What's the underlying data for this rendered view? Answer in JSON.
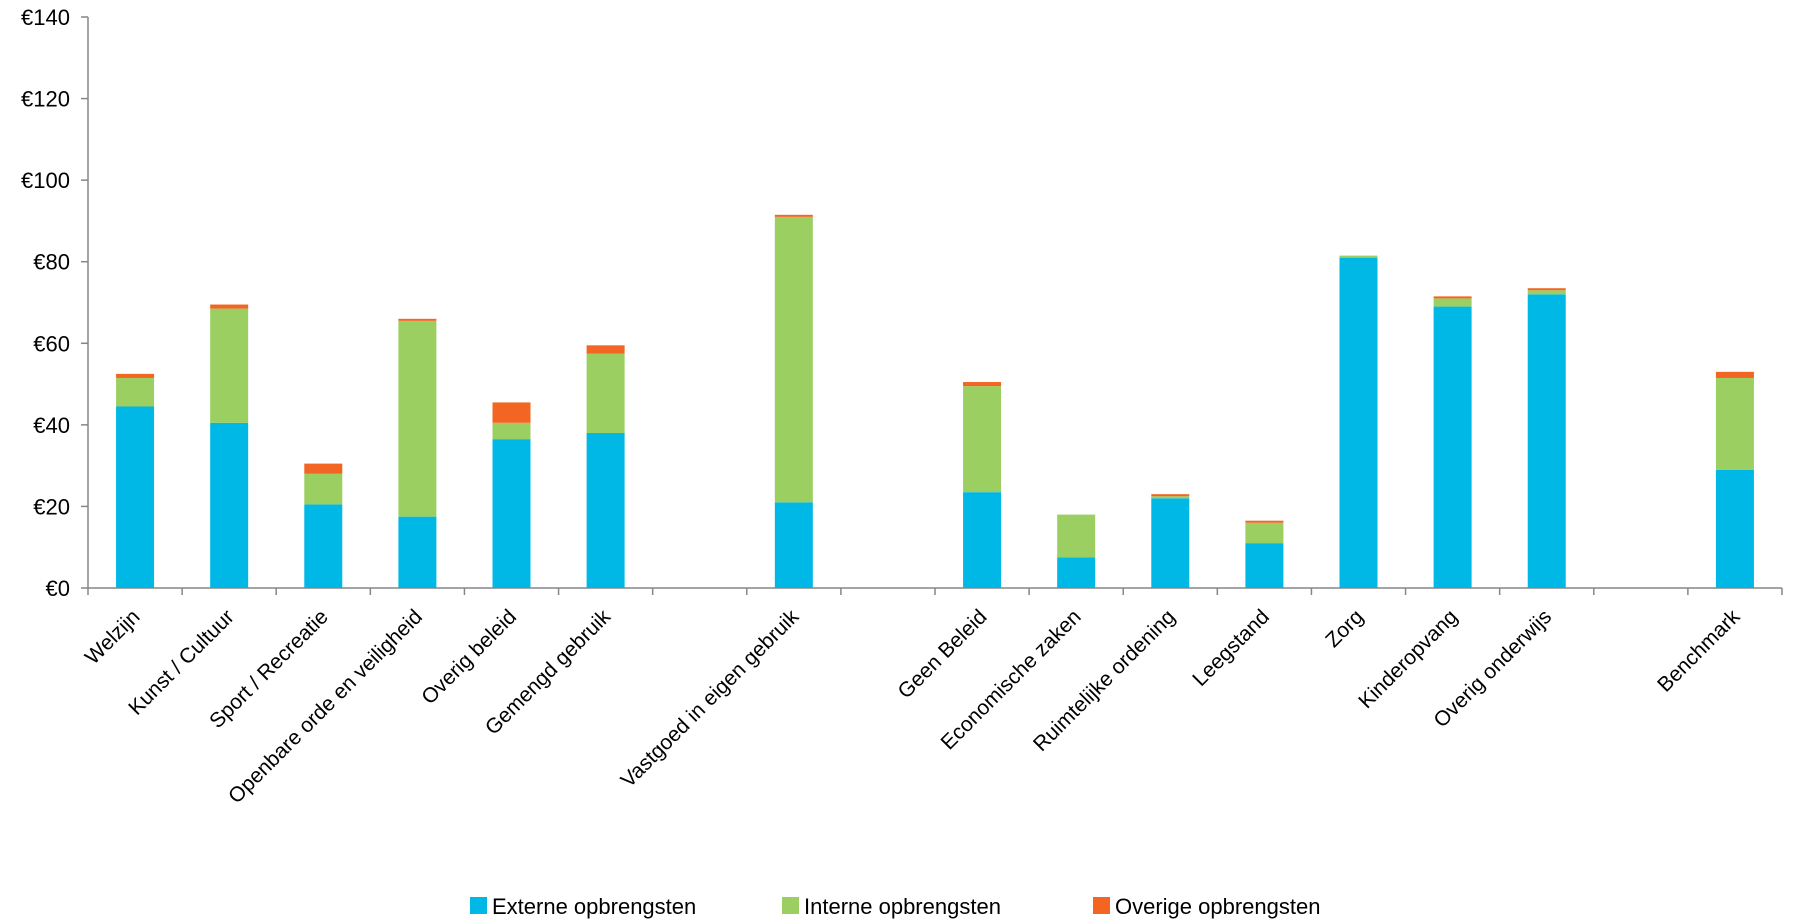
{
  "chart_data": {
    "type": "bar",
    "stacked": true,
    "title": "",
    "xlabel": "",
    "ylabel": "",
    "ylim": [
      0,
      140
    ],
    "y_ticks": [
      "€0",
      "€20",
      "€40",
      "€60",
      "€80",
      "€100",
      "€120",
      "€140"
    ],
    "y_tick_values": [
      0,
      20,
      40,
      60,
      80,
      100,
      120,
      140
    ],
    "grid": false,
    "legend_position": "bottom",
    "categories": [
      "Welzijn",
      "Kunst / Cultuur",
      "Sport / Recreatie",
      "Openbare orde en veiligheid",
      "Overig beleid",
      "Gemengd gebruik",
      "",
      "Vastgoed in eigen gebruik",
      "",
      "Geen Beleid",
      "Economische zaken",
      "Ruimtelijke ordening",
      "Leegstand",
      "Zorg",
      "Kinderopvang",
      "Overig onderwijs",
      "",
      "Benchmark"
    ],
    "series": [
      {
        "name": "Externe opbrengsten",
        "color": "#00b8e6",
        "values": [
          44.5,
          40.5,
          20.5,
          17.5,
          36.5,
          38,
          null,
          21,
          null,
          23.5,
          7.5,
          22,
          11,
          81,
          69,
          72,
          null,
          29
        ]
      },
      {
        "name": "Interne opbrengsten",
        "color": "#9ccf62",
        "values": [
          7,
          28,
          7.5,
          48,
          4,
          19.5,
          null,
          70,
          null,
          26,
          10.5,
          0.5,
          5,
          0.5,
          2,
          1,
          null,
          22.5
        ]
      },
      {
        "name": "Overige opbrengsten",
        "color": "#f26522",
        "values": [
          1,
          1,
          2.5,
          0.5,
          5,
          2,
          null,
          0.5,
          null,
          1,
          0,
          0.5,
          0.5,
          0,
          0.5,
          0.5,
          null,
          1.5
        ]
      }
    ]
  }
}
